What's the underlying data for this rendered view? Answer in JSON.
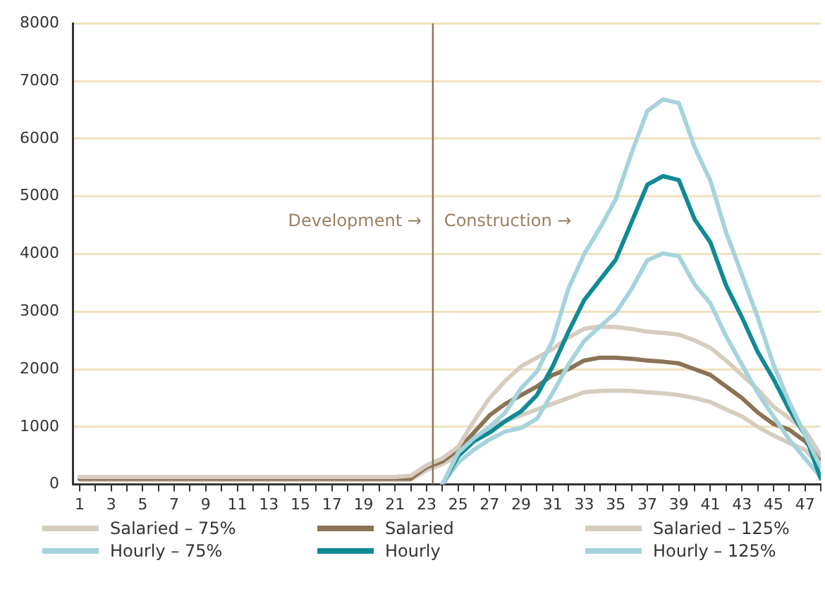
{
  "chart_data": {
    "type": "line",
    "x": [
      1,
      2,
      3,
      4,
      5,
      6,
      7,
      8,
      9,
      10,
      11,
      12,
      13,
      14,
      15,
      16,
      17,
      18,
      19,
      20,
      21,
      22,
      23,
      24,
      25,
      26,
      27,
      28,
      29,
      30,
      31,
      32,
      33,
      34,
      35,
      36,
      37,
      38,
      39,
      40,
      41,
      42,
      43,
      44,
      45,
      46,
      47,
      48
    ],
    "xlim": [
      0.6,
      48
    ],
    "xticks": [
      1,
      {
        "value": 2,
        "label": null
      },
      3,
      {
        "value": 4,
        "label": null
      },
      5,
      {
        "value": 6,
        "label": null
      },
      7,
      {
        "value": 8,
        "label": null
      },
      9,
      {
        "value": 10,
        "label": null
      },
      11,
      {
        "value": 12,
        "label": null
      },
      13,
      {
        "value": 14,
        "label": null
      },
      15,
      {
        "value": 16,
        "label": null
      },
      17,
      {
        "value": 18,
        "label": null
      },
      19,
      {
        "value": 20,
        "label": null
      },
      21,
      {
        "value": 22,
        "label": null
      },
      23,
      {
        "value": 24,
        "label": null
      },
      25,
      {
        "value": 26,
        "label": null
      },
      27,
      {
        "value": 28,
        "label": null
      },
      29,
      {
        "value": 30,
        "label": null
      },
      31,
      {
        "value": 32,
        "label": null
      },
      33,
      {
        "value": 34,
        "label": null
      },
      35,
      {
        "value": 36,
        "label": null
      },
      37,
      {
        "value": 38,
        "label": null
      },
      39,
      {
        "value": 40,
        "label": null
      },
      41,
      {
        "value": 42,
        "label": null
      },
      43,
      {
        "value": 44,
        "label": null
      },
      45,
      {
        "value": 46,
        "label": null
      },
      47,
      {
        "value": 48,
        "label": null
      }
    ],
    "ylim": [
      0,
      8000
    ],
    "yticks": [
      0,
      1000,
      2000,
      3000,
      4000,
      5000,
      6000,
      7000,
      8000
    ],
    "grid": "y",
    "legend": "bottom",
    "marker": "none",
    "line_style": "solid",
    "series": [
      {
        "name": "Salaried – 75%",
        "color": "#d6ccbf",
        "values": [
          80,
          80,
          80,
          80,
          80,
          80,
          80,
          80,
          80,
          80,
          80,
          80,
          80,
          80,
          80,
          80,
          80,
          80,
          80,
          80,
          80,
          80,
          250,
          350,
          500,
          750,
          1000,
          1100,
          1200,
          1300,
          1400,
          1500,
          1600,
          1620,
          1630,
          1620,
          1600,
          1580,
          1550,
          1500,
          1430,
          1300,
          1180,
          1000,
          850,
          720,
          600,
          300
        ]
      },
      {
        "name": "Salaried",
        "color": "#8b7355",
        "values": [
          100,
          100,
          100,
          100,
          100,
          100,
          100,
          100,
          100,
          100,
          100,
          100,
          100,
          100,
          100,
          100,
          100,
          100,
          100,
          100,
          100,
          100,
          300,
          400,
          600,
          900,
          1200,
          1400,
          1550,
          1700,
          1900,
          2000,
          2150,
          2200,
          2200,
          2180,
          2150,
          2130,
          2100,
          2000,
          1900,
          1700,
          1500,
          1250,
          1050,
          950,
          750,
          450
        ]
      },
      {
        "name": "Salaried – 125%",
        "color": "#d6ccbf",
        "values": [
          130,
          130,
          130,
          130,
          130,
          130,
          130,
          130,
          130,
          130,
          130,
          130,
          130,
          130,
          130,
          130,
          130,
          130,
          130,
          130,
          130,
          150,
          330,
          450,
          650,
          1100,
          1500,
          1800,
          2050,
          2200,
          2350,
          2550,
          2700,
          2740,
          2730,
          2700,
          2650,
          2630,
          2600,
          2500,
          2370,
          2150,
          1900,
          1650,
          1350,
          1150,
          940,
          500
        ]
      },
      {
        "name": "Hourly – 75%",
        "color": "#a6d3dc",
        "values": [
          null,
          null,
          null,
          null,
          null,
          null,
          null,
          null,
          null,
          null,
          null,
          null,
          null,
          null,
          null,
          null,
          null,
          null,
          null,
          null,
          null,
          null,
          null,
          0,
          380,
          600,
          780,
          920,
          980,
          1140,
          1590,
          2080,
          2490,
          2740,
          2980,
          3390,
          3890,
          4010,
          3960,
          3470,
          3140,
          2570,
          2080,
          1590,
          1180,
          780,
          450,
          130
        ]
      },
      {
        "name": "Hourly",
        "color": "#108a96",
        "values": [
          null,
          null,
          null,
          null,
          null,
          null,
          null,
          null,
          null,
          null,
          null,
          null,
          null,
          null,
          null,
          null,
          null,
          null,
          null,
          null,
          null,
          null,
          null,
          0,
          490,
          750,
          900,
          1100,
          1270,
          1550,
          2050,
          2650,
          3200,
          3550,
          3900,
          4550,
          5200,
          5350,
          5280,
          4600,
          4200,
          3450,
          2900,
          2300,
          1830,
          1300,
          860,
          100
        ]
      },
      {
        "name": "Hourly – 125%",
        "color": "#a6d3dc",
        "values": [
          null,
          null,
          null,
          null,
          null,
          null,
          null,
          null,
          null,
          null,
          null,
          null,
          null,
          null,
          null,
          null,
          null,
          null,
          null,
          null,
          null,
          null,
          null,
          0,
          550,
          800,
          1000,
          1250,
          1670,
          1960,
          2500,
          3400,
          4000,
          4450,
          4950,
          5750,
          6480,
          6680,
          6620,
          5850,
          5270,
          4370,
          3640,
          2900,
          2080,
          1430,
          860,
          300
        ]
      }
    ],
    "ref_lines": [
      {
        "axis": "x",
        "value": 23.4,
        "color": "#8b7355"
      }
    ],
    "annotations": [
      "Development →",
      "Construction →"
    ]
  }
}
